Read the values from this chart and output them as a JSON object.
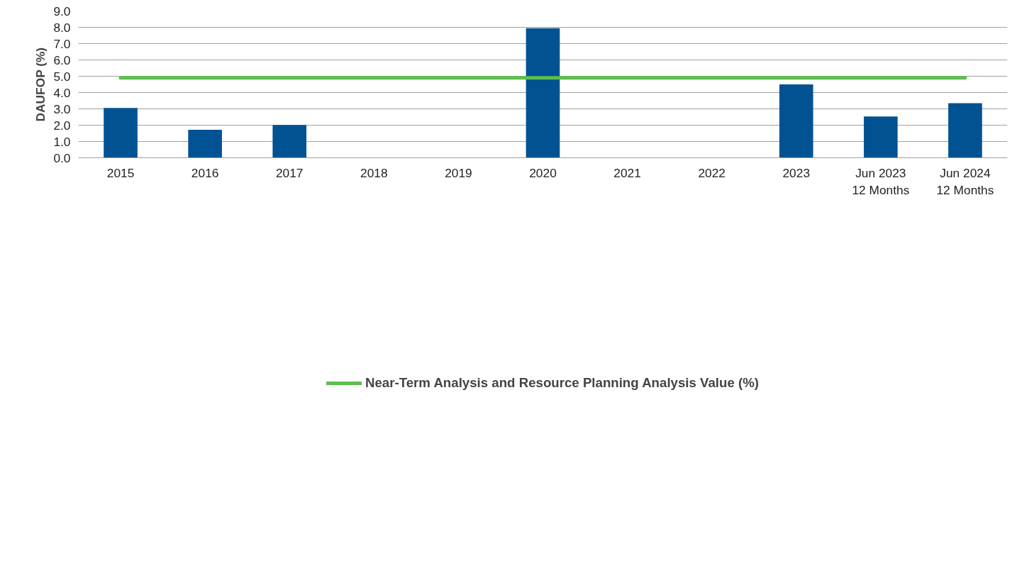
{
  "chart_data": {
    "type": "bar",
    "ylabel": "DAUFOP (%)",
    "categories": [
      "2015",
      "2016",
      "2017",
      "2018",
      "2019",
      "2020",
      "2021",
      "2022",
      "2023",
      "Jun 2023\n12 Months",
      "Jun 2024\n12 Months"
    ],
    "series": [
      {
        "color": "#005293",
        "values": [
          3.05,
          1.72,
          2.01,
          0,
          0,
          7.95,
          0,
          0,
          4.5,
          2.53,
          3.35
        ]
      },
      {
        "type": "line",
        "name": "Near-Term Analysis and Resource Planning Analysis Value (%)",
        "color": "#5cbf4c",
        "values": [
          4.9,
          4.9,
          4.9,
          4.9,
          4.9,
          4.9,
          4.9,
          4.9,
          4.9,
          4.9,
          4.9
        ]
      }
    ],
    "ylim": [
      0,
      9
    ],
    "yticks": [
      {
        "value": 0,
        "label": "0.0"
      },
      {
        "value": 1,
        "label": "1.0"
      },
      {
        "value": 2,
        "label": "2.0"
      },
      {
        "value": 3,
        "label": "3.0"
      },
      {
        "value": 4,
        "label": "4.0"
      },
      {
        "value": 5,
        "label": "5.0"
      },
      {
        "value": 6,
        "label": "6.0"
      },
      {
        "value": 7,
        "label": "7.0"
      },
      {
        "value": 8,
        "label": "8.0"
      },
      {
        "value": 9,
        "label": "9.0"
      }
    ],
    "grid": "y",
    "legend": "bottom"
  }
}
